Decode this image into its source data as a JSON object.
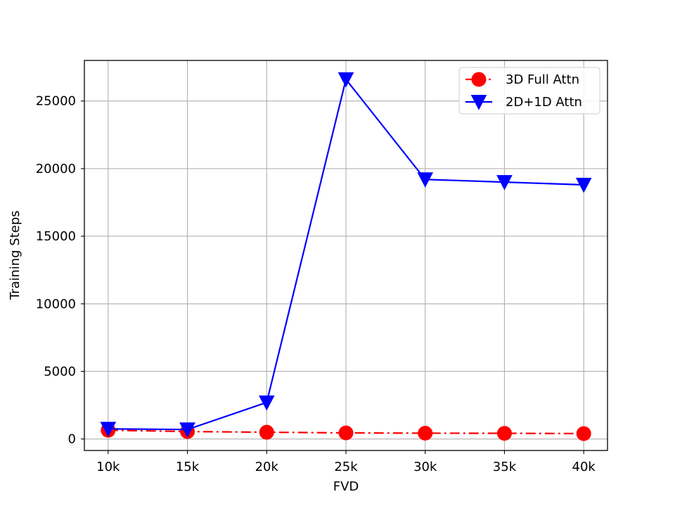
{
  "chart_data": {
    "type": "line",
    "title": "",
    "xlabel": "FVD",
    "ylabel": "Training Steps",
    "categories": [
      "10k",
      "15k",
      "20k",
      "25k",
      "30k",
      "35k",
      "40k"
    ],
    "yticks": [
      "0",
      "5000",
      "10000",
      "15000",
      "20000",
      "25000"
    ],
    "ylim": [
      -850,
      28000
    ],
    "grid": true,
    "legend_position": "top-right",
    "series": [
      {
        "name": "3D Full Attn",
        "values": [
          650,
          550,
          500,
          450,
          430,
          420,
          400
        ],
        "color": "#ff0000",
        "line_style": "dash-dot",
        "marker": "circle"
      },
      {
        "name": "2D+1D Attn",
        "values": [
          750,
          700,
          2700,
          26600,
          19200,
          19000,
          18800
        ],
        "color": "#0000ff",
        "line_style": "solid",
        "marker": "triangle-down"
      }
    ]
  }
}
